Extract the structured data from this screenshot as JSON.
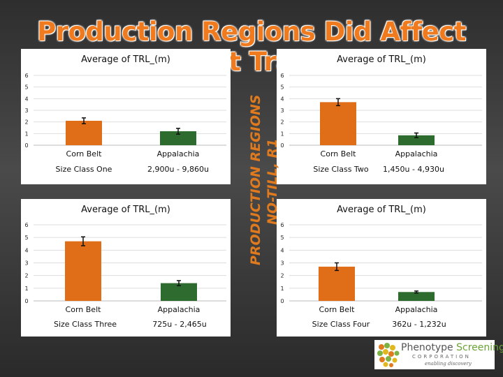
{
  "page": {
    "title": "Production Regions Did Affect Root Traits",
    "side_label_line1": "PRODUCTION REGIONS",
    "side_label_line2": "NO-TILL, R1",
    "logo_name_part1": "Phenotype",
    "logo_name_part2": " Screening",
    "logo_corp": "CORPORATION",
    "logo_tag": "enabling discovery"
  },
  "colors": {
    "corn_belt": "#e06d18",
    "appalachia": "#2e6b2e",
    "gridline": "#dddddd"
  },
  "chart_data": [
    {
      "type": "bar",
      "title": "Average of TRL_(m)",
      "categories": [
        "Corn Belt",
        "Appalachia"
      ],
      "size_labels": [
        "Size Class One",
        "2,900u - 9,860u"
      ],
      "values": [
        2.1,
        1.2
      ],
      "errors": [
        0.25,
        0.25
      ],
      "ylim": [
        0,
        6
      ],
      "yticks": [
        0,
        1,
        2,
        3,
        4,
        5,
        6
      ]
    },
    {
      "type": "bar",
      "title": "Average of TRL_(m)",
      "categories": [
        "Corn Belt",
        "Appalachia"
      ],
      "size_labels": [
        "Size Class Two",
        "1,450u - 4,930u"
      ],
      "values": [
        3.7,
        0.85
      ],
      "errors": [
        0.3,
        0.2
      ],
      "ylim": [
        0,
        6
      ],
      "yticks": [
        0,
        1,
        2,
        3,
        4,
        5,
        6
      ]
    },
    {
      "type": "bar",
      "title": "Average of TRL_(m)",
      "categories": [
        "Corn Belt",
        "Appalachia"
      ],
      "size_labels": [
        "Size Class Three",
        "725u - 2,465u"
      ],
      "values": [
        4.7,
        1.4
      ],
      "errors": [
        0.35,
        0.2
      ],
      "ylim": [
        0,
        6
      ],
      "yticks": [
        0,
        1,
        2,
        3,
        4,
        5,
        6
      ]
    },
    {
      "type": "bar",
      "title": "Average of TRL_(m)",
      "categories": [
        "Corn Belt",
        "Appalachia"
      ],
      "size_labels": [
        "Size Class Four",
        "362u - 1,232u"
      ],
      "values": [
        2.7,
        0.7
      ],
      "errors": [
        0.3,
        0.08
      ],
      "ylim": [
        0,
        6
      ],
      "yticks": [
        0,
        1,
        2,
        3,
        4,
        5,
        6
      ]
    }
  ]
}
